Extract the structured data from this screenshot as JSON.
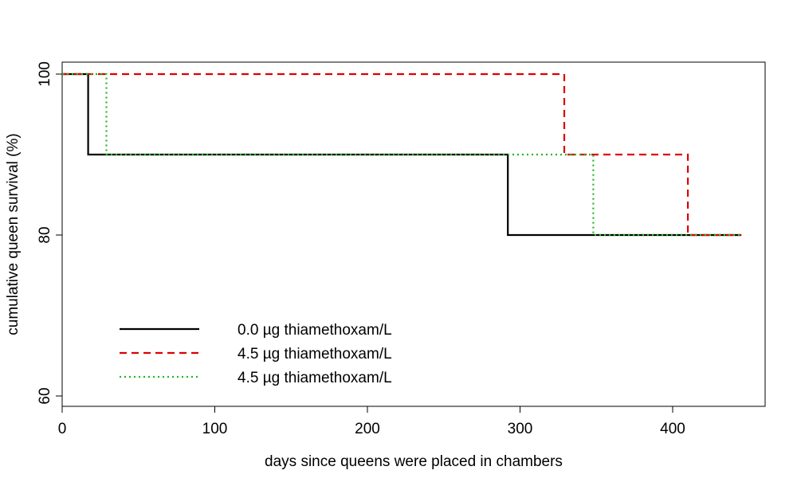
{
  "chart_data": {
    "type": "line",
    "step": true,
    "title": "",
    "xlabel": "days since queens were placed in chambers",
    "ylabel": "cumulative queen survival (%)",
    "xlim": [
      0,
      460
    ],
    "ylim": [
      58.5,
      101.5
    ],
    "xticks": [
      0,
      100,
      200,
      300,
      400
    ],
    "yticks": [
      60,
      80,
      100
    ],
    "grid": false,
    "legend_position": "bottom-left",
    "series": [
      {
        "name": "0.0 µg thiamethoxam/L",
        "color": "#000000",
        "dash": "solid",
        "points": [
          [
            0,
            100
          ],
          [
            17,
            100
          ],
          [
            17,
            90
          ],
          [
            292,
            90
          ],
          [
            292,
            80
          ],
          [
            445,
            80
          ]
        ]
      },
      {
        "name": "4.5 µg thiamethoxam/L",
        "color": "#DF0000",
        "dash": "dashed",
        "points": [
          [
            0,
            100
          ],
          [
            329,
            100
          ],
          [
            329,
            90
          ],
          [
            410,
            90
          ],
          [
            410,
            80
          ],
          [
            445,
            80
          ]
        ]
      },
      {
        "name": "4.5 µg thiamethoxam/L",
        "color": "#22B522",
        "dash": "dotted",
        "points": [
          [
            0,
            100
          ],
          [
            29,
            100
          ],
          [
            29,
            90
          ],
          [
            348,
            90
          ],
          [
            348,
            80
          ],
          [
            445,
            80
          ]
        ]
      }
    ]
  }
}
